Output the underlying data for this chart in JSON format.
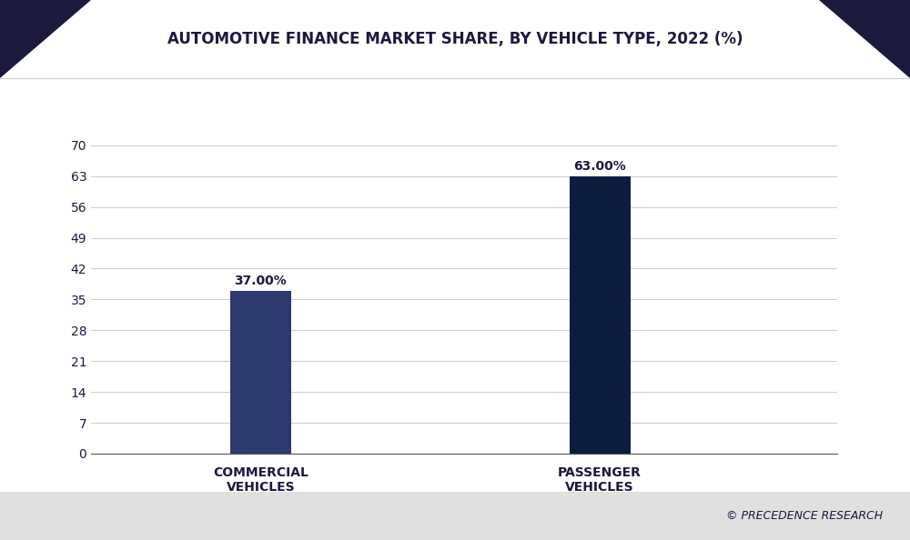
{
  "title": "AUTOMOTIVE FINANCE MARKET SHARE, BY VEHICLE TYPE, 2022 (%)",
  "categories": [
    "COMMERCIAL\nVEHICLES",
    "PASSENGER\nVEHICLES"
  ],
  "values": [
    37.0,
    63.0
  ],
  "labels": [
    "37.00%",
    "63.00%"
  ],
  "bar_colors": [
    "#2e3a6e",
    "#0d1b3e"
  ],
  "background_color": "#ffffff",
  "plot_bg_color": "#ffffff",
  "title_color": "#1a1a3e",
  "yticks": [
    0,
    7,
    14,
    21,
    28,
    35,
    42,
    49,
    56,
    63,
    70
  ],
  "ylim": [
    0,
    76
  ],
  "grid_color": "#cccccc",
  "xlabel_color": "#1a1a3e",
  "label_fontsize": 10,
  "title_fontsize": 12,
  "tick_fontsize": 10,
  "bar_width": 0.18,
  "watermark": "© PRECEDENCE RESEARCH",
  "watermark_color": "#1a1a3e",
  "corner_color": "#1a1a3e",
  "footer_color": "#e0e0e0",
  "header_color": "#f5f5f5"
}
